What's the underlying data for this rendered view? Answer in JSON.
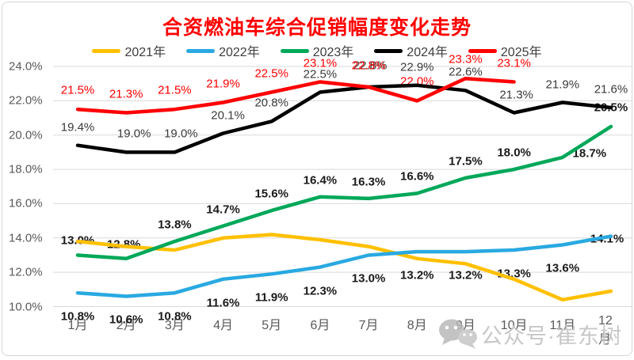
{
  "chart_data": {
    "type": "line",
    "title": "合资燃油车综合促销幅度变化走势",
    "title_color": "#FF0000",
    "categories": [
      "1月",
      "2月",
      "3月",
      "4月",
      "5月",
      "6月",
      "7月",
      "8月",
      "9月",
      "10月",
      "11月",
      "12月"
    ],
    "ylim": [
      10,
      24
    ],
    "ytick_step": 2,
    "ytick_decimals": 1,
    "ytick_suffix": "%",
    "grid": true,
    "gridline_color": "#d9d9d9",
    "axis_text_color": "#595959",
    "legend_position": "top",
    "series": [
      {
        "name": "2021年",
        "color": "#FFC000",
        "values": [
          13.8,
          13.5,
          13.3,
          14.0,
          14.2,
          13.9,
          13.5,
          12.8,
          12.5,
          11.6,
          10.4,
          10.9
        ],
        "labels": {
          "show": false
        }
      },
      {
        "name": "2022年",
        "color": "#29A9E1",
        "values": [
          10.8,
          10.6,
          10.8,
          11.6,
          11.9,
          12.3,
          13.0,
          13.2,
          13.2,
          13.3,
          13.6,
          14.1
        ],
        "labels": {
          "show": true,
          "color": "#1a1a1a",
          "bold": true,
          "dy": 30,
          "offsets": {
            "11": {
              "dx": -5,
              "dy": 3
            }
          }
        }
      },
      {
        "name": "2023年",
        "color": "#00A859",
        "values": [
          13.0,
          12.8,
          13.8,
          14.7,
          15.6,
          16.4,
          16.3,
          16.6,
          17.5,
          18.0,
          18.7,
          20.5
        ],
        "labels": {
          "show": true,
          "color": "#1a1a1a",
          "bold": true,
          "dy": -21,
          "offsets": {
            "0": {
              "dy": -18
            },
            "1": {
              "dx": -3,
              "dy": -18
            },
            "10": {
              "dx": 34,
              "dy": -5
            },
            "11": {
              "dy": -24
            }
          }
        }
      },
      {
        "name": "2024年",
        "color": "#000000",
        "values": [
          19.4,
          19.0,
          19.0,
          20.1,
          20.8,
          22.5,
          22.8,
          22.9,
          22.6,
          21.3,
          21.9,
          21.6
        ],
        "labels": {
          "show": true,
          "color": "#3a3a3a",
          "bold": false,
          "dy": -23,
          "offsets": {
            "1": {
              "dx": 10
            },
            "2": {
              "dx": 8
            },
            "3": {
              "dx": 6
            },
            "6": {
              "dx": 2,
              "dy": -27
            },
            "9": {
              "dx": 3
            }
          }
        }
      },
      {
        "name": "2025年",
        "color": "#FF0000",
        "values": [
          21.5,
          21.3,
          21.5,
          21.9,
          22.5,
          23.1,
          22.8,
          22.0,
          23.3,
          23.1,
          null,
          null
        ],
        "labels": {
          "show": true,
          "color": "#FF0000",
          "bold": false,
          "dy": -24,
          "offsets": {
            "6": {
              "dy": -27
            }
          }
        }
      }
    ]
  },
  "watermark": {
    "text": "公众号·崔东树",
    "icon": "wechat-icon"
  }
}
